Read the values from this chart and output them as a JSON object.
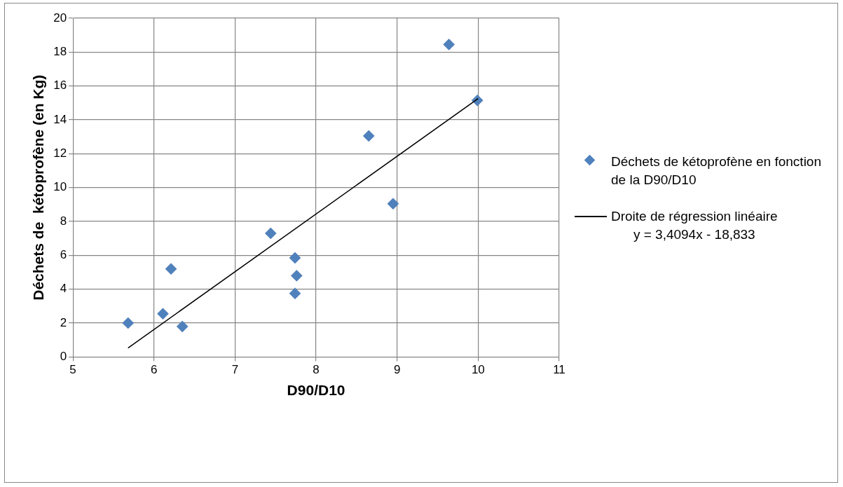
{
  "chart_data": {
    "type": "scatter",
    "xlabel": "D90/D10",
    "ylabel": "Déchets de  kétoprofène (en Kg)",
    "xlim": [
      5,
      11
    ],
    "xticks": [
      5,
      6,
      7,
      8,
      9,
      10,
      11
    ],
    "ylim": [
      0,
      20
    ],
    "yticks": [
      0,
      2,
      4,
      6,
      8,
      10,
      12,
      14,
      16,
      18,
      20
    ],
    "grid": true,
    "legend": "right",
    "marker": "diamond",
    "series": [
      {
        "name": "Déchets de kétoprofène en fonction de la D90/D10",
        "color": "#4f81bd",
        "x": [
          5.68,
          6.11,
          6.21,
          6.35,
          7.44,
          7.74,
          7.76,
          7.74,
          8.65,
          8.95,
          9.64,
          9.99
        ],
        "values": [
          2.0,
          2.55,
          5.2,
          1.8,
          7.3,
          5.85,
          4.8,
          3.75,
          13.05,
          9.05,
          18.45,
          15.15
        ]
      },
      {
        "name": "Droite de régression linéaire",
        "type": "line",
        "color": "#000000",
        "marker": "none",
        "x": [
          5.68,
          10.0
        ],
        "values": [
          0.53,
          15.26
        ]
      }
    ],
    "annotations": [
      "y = 3,4094x - 18,833"
    ]
  }
}
